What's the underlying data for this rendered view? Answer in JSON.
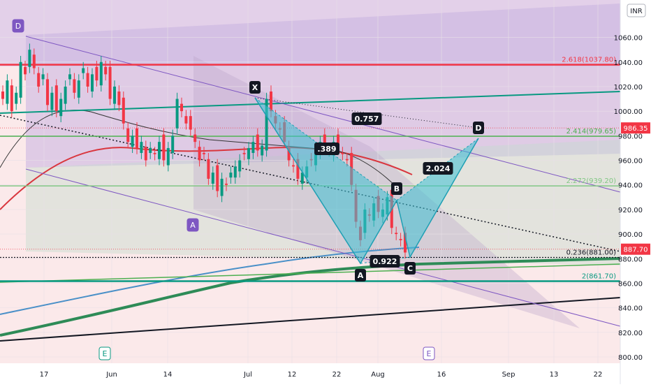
{
  "chart_data": {
    "type": "candlestick",
    "currency": "INR",
    "ylim": [
      800,
      1080
    ],
    "y_ticks": [
      1060,
      1040,
      1020,
      1000,
      980,
      960,
      940,
      920,
      900,
      880,
      860,
      840,
      820,
      800
    ],
    "x_ticks": [
      "17",
      "Jun",
      "14",
      "Jul",
      "12",
      "22",
      "Aug",
      "16",
      "Sep",
      "13",
      "22"
    ],
    "price_tags": [
      {
        "text": "986.35",
        "color": "#f23645"
      },
      {
        "text": "887.70",
        "color": "#f23645"
      }
    ],
    "fib_levels": [
      {
        "label": "2.618(1037.80)",
        "value": 1037.8,
        "color": "#f23645"
      },
      {
        "label": "2.414(979.65)",
        "value": 979.65,
        "color": "#4caf50"
      },
      {
        "label": "2.272(939.20)",
        "value": 939.2,
        "color": "#81c784"
      },
      {
        "label": "0.236(881.00)",
        "value": 881.0,
        "color": "#131722"
      },
      {
        "label": "2(861.70)",
        "value": 861.7,
        "color": "#089981"
      }
    ],
    "harmonic_pattern": {
      "points": [
        {
          "label": "X",
          "value": 1013
        },
        {
          "label": "A",
          "value": 877
        },
        {
          "label": "B",
          "value": 930
        },
        {
          "label": "C",
          "value": 883
        },
        {
          "label": "D",
          "value": 978
        }
      ],
      "ratios": [
        "0.757",
        ".389",
        "0.922",
        "2.024"
      ]
    },
    "swing_labels": [
      "D",
      "A",
      "E",
      "E"
    ]
  }
}
